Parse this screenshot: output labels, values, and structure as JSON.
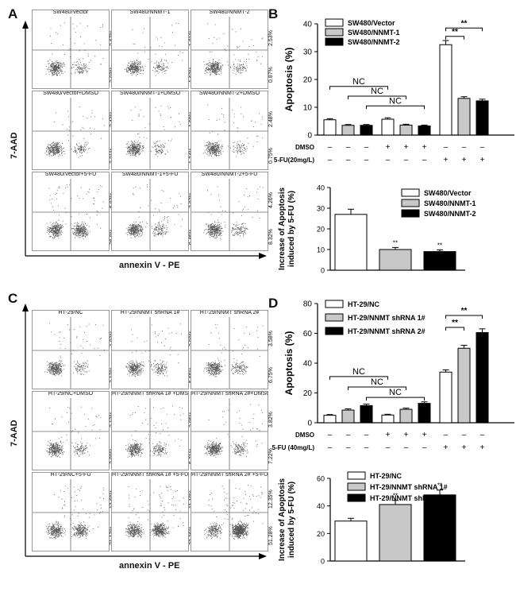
{
  "panels": {
    "A": {
      "letter": "A",
      "y_axis": "7-AAD",
      "x_axis": "annexin V - PE",
      "plots": [
        {
          "title": "SW480/Vector",
          "q_upper": "2.67%",
          "q_lower": "2.82%"
        },
        {
          "title": "SW480/NNMT-1",
          "q_upper": "1.81%",
          "q_lower": "1.62%"
        },
        {
          "title": "SW480/NNMT-2",
          "q_upper": "2.53%",
          "q_lower": "0.87%"
        },
        {
          "title": "SW480/Vector+DMSO",
          "q_upper": "2.42%",
          "q_lower": "3.21%"
        },
        {
          "title": "SW480/NNMT-1+DMSO",
          "q_upper": "1.90%",
          "q_lower": "1.74%"
        },
        {
          "title": "SW480/NNMT-2+DMSO",
          "q_upper": "2.48%",
          "q_lower": "0.75%"
        },
        {
          "title": "SW480/Vector+5-FU",
          "q_upper": "5.87%",
          "q_lower": "26.8%"
        },
        {
          "title": "SW480/NNMT-1+5-FU",
          "q_upper": "3.87%",
          "q_lower": "9.45%"
        },
        {
          "title": "SW480/NNMT-2+5-FU",
          "q_upper": "4.26%",
          "q_lower": "8.32%"
        }
      ]
    },
    "B": {
      "letter": "B"
    },
    "C": {
      "letter": "C",
      "y_axis": "7-AAD",
      "x_axis": "annexin V - PE",
      "plots": [
        {
          "title": "HT-29/NC",
          "q_upper": "1.92%",
          "q_lower": "3.12%"
        },
        {
          "title": "HT-29/NNMT shRNA 1#",
          "q_upper": "2.90%",
          "q_lower": "5.65%"
        },
        {
          "title": "HT-29/NNMT shRNA 2#",
          "q_upper": "3.58%",
          "q_lower": "6.75%"
        },
        {
          "title": "HT-29/NC+DMSO",
          "q_upper": "2.12%",
          "q_lower": "3.08%"
        },
        {
          "title": "HT-29/NNMT shRNA 1# +DMSO",
          "q_upper": "2.95%",
          "q_lower": "5.71%"
        },
        {
          "title": "HT-29/NNMT shRNA 2#+DMSO",
          "q_upper": "3.82%",
          "q_lower": "7.22%"
        },
        {
          "title": "HT-29/NC+5-FU",
          "q_upper": "13.69%",
          "q_lower": "21.17%"
        },
        {
          "title": "HT-29/NNMT shRNA 1# +5-FU",
          "q_upper": "11.18%",
          "q_lower": "33.36%"
        },
        {
          "title": "HT-29/NNMT shRNA 2# +5-FU",
          "q_upper": "12.35%",
          "q_lower": "51.28%"
        }
      ]
    },
    "D": {
      "letter": "D"
    }
  },
  "colors": {
    "white": "#ffffff",
    "gray": "#c8c8c8",
    "black": "#000000"
  },
  "chart_data": [
    {
      "id": "B-top",
      "type": "bar",
      "ylabel": "Apoptosis (%)",
      "ylim": [
        0,
        40
      ],
      "yticks": [
        0,
        10,
        20,
        30,
        40
      ],
      "legend": [
        {
          "name": "SW480/Vector",
          "color": "white"
        },
        {
          "name": "SW480/NNMT-1",
          "color": "gray"
        },
        {
          "name": "SW480/NNMT-2",
          "color": "black"
        }
      ],
      "bars": [
        {
          "value": 5.5,
          "err": 0.4,
          "color": "white"
        },
        {
          "value": 3.5,
          "err": 0.3,
          "color": "gray"
        },
        {
          "value": 3.5,
          "err": 0.3,
          "color": "black"
        },
        {
          "value": 5.7,
          "err": 0.5,
          "color": "white"
        },
        {
          "value": 3.6,
          "err": 0.3,
          "color": "gray"
        },
        {
          "value": 3.3,
          "err": 0.3,
          "color": "black"
        },
        {
          "value": 32.5,
          "err": 1.5,
          "color": "white"
        },
        {
          "value": 13.2,
          "err": 0.6,
          "color": "gray"
        },
        {
          "value": 12.3,
          "err": 0.6,
          "color": "black"
        }
      ],
      "brackets": [
        {
          "from": 0,
          "to": 3,
          "y": 17.5,
          "label": "NC"
        },
        {
          "from": 1,
          "to": 4,
          "y": 14.0,
          "label": "NC"
        },
        {
          "from": 2,
          "to": 5,
          "y": 10.5,
          "label": "NC"
        },
        {
          "from": 6,
          "to": 7,
          "y": 35.5,
          "label": "**"
        },
        {
          "from": 6,
          "to": 8,
          "y": 38.5,
          "label": "**"
        }
      ],
      "treatments": [
        {
          "label": "DMSO",
          "values": [
            "–",
            "–",
            "–",
            "+",
            "+",
            "+",
            "–",
            "–",
            "–"
          ]
        },
        {
          "label": "5-FU(20mg/L)",
          "values": [
            "–",
            "–",
            "–",
            "–",
            "–",
            "–",
            "+",
            "+",
            "+"
          ]
        }
      ]
    },
    {
      "id": "B-bottom",
      "type": "bar",
      "ylabel": "Increase of Apoptosis induced by 5-FU (%)",
      "ylim": [
        0,
        40
      ],
      "yticks": [
        0,
        10,
        20,
        30,
        40
      ],
      "legend": [
        {
          "name": "SW480/Vector",
          "color": "white"
        },
        {
          "name": "SW480/NNMT-1",
          "color": "gray"
        },
        {
          "name": "SW480/NNMT-2",
          "color": "black"
        }
      ],
      "bars": [
        {
          "value": 27,
          "err": 2.5,
          "color": "white",
          "sig": ""
        },
        {
          "value": 10,
          "err": 1.0,
          "color": "gray",
          "sig": "**"
        },
        {
          "value": 9,
          "err": 0.8,
          "color": "black",
          "sig": "**"
        }
      ]
    },
    {
      "id": "D-top",
      "type": "bar",
      "ylabel": "Apoptosis (%)",
      "ylim": [
        0,
        80
      ],
      "yticks": [
        0,
        20,
        40,
        60,
        80
      ],
      "legend": [
        {
          "name": "HT-29/NC",
          "color": "white"
        },
        {
          "name": "HT-29/NNMT shRNA 1#",
          "color": "gray"
        },
        {
          "name": "HT-29/NNMT shRNA 2#",
          "color": "black"
        }
      ],
      "bars": [
        {
          "value": 5,
          "err": 0.5,
          "color": "white"
        },
        {
          "value": 8.5,
          "err": 0.8,
          "color": "gray"
        },
        {
          "value": 11.5,
          "err": 1.0,
          "color": "black"
        },
        {
          "value": 5.2,
          "err": 0.5,
          "color": "white"
        },
        {
          "value": 9,
          "err": 0.8,
          "color": "gray"
        },
        {
          "value": 13,
          "err": 1.0,
          "color": "black"
        },
        {
          "value": 34,
          "err": 1.5,
          "color": "white"
        },
        {
          "value": 50,
          "err": 2,
          "color": "gray"
        },
        {
          "value": 60.5,
          "err": 2.5,
          "color": "black"
        }
      ],
      "brackets": [
        {
          "from": 0,
          "to": 3,
          "y": 31,
          "label": "NC"
        },
        {
          "from": 1,
          "to": 4,
          "y": 24,
          "label": "NC"
        },
        {
          "from": 2,
          "to": 5,
          "y": 17,
          "label": "NC"
        },
        {
          "from": 6,
          "to": 7,
          "y": 64,
          "label": "**"
        },
        {
          "from": 6,
          "to": 8,
          "y": 72,
          "label": "**"
        }
      ],
      "treatments": [
        {
          "label": "DMSO",
          "values": [
            "–",
            "–",
            "–",
            "+",
            "+",
            "+",
            "–",
            "–",
            "–"
          ]
        },
        {
          "label": "5-FU (40mg/L)",
          "values": [
            "–",
            "–",
            "–",
            "–",
            "–",
            "–",
            "+",
            "+",
            "+"
          ]
        }
      ]
    },
    {
      "id": "D-bottom",
      "type": "bar",
      "ylabel": "Increase of Apoptosis induced by 5-FU (%)",
      "ylim": [
        0,
        60
      ],
      "yticks": [
        0,
        20,
        40,
        60
      ],
      "legend": [
        {
          "name": "HT-29/NC",
          "color": "white"
        },
        {
          "name": "HT-29/NNMT shRNA 1#",
          "color": "gray"
        },
        {
          "name": "HT-29/NNMT shRNA 2#",
          "color": "black"
        }
      ],
      "bars": [
        {
          "value": 29,
          "err": 2,
          "color": "white",
          "sig": ""
        },
        {
          "value": 41,
          "err": 3,
          "color": "gray",
          "sig": "**"
        },
        {
          "value": 48,
          "err": 3.5,
          "color": "black",
          "sig": "**"
        }
      ]
    }
  ]
}
